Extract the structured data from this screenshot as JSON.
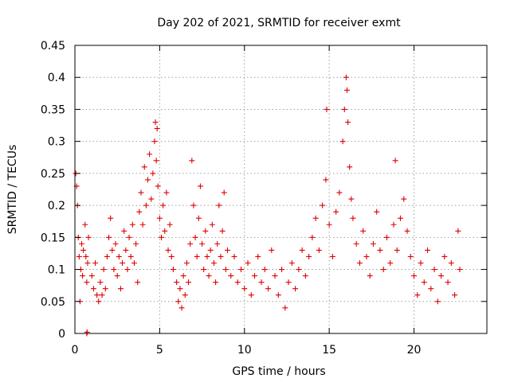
{
  "chart_data": {
    "type": "scatter",
    "title": "Day 202 of 2021, SRMTID for receiver exmt",
    "xlabel": "GPS time / hours",
    "ylabel": "SRMTID / TECUs",
    "xlim": [
      0,
      24.3
    ],
    "ylim": [
      0,
      0.45
    ],
    "xticks": [
      0,
      5,
      10,
      15,
      20
    ],
    "xtick_labels": [
      "0",
      "5",
      "10",
      "15",
      "20"
    ],
    "yticks": [
      0,
      0.05,
      0.1,
      0.15,
      0.2,
      0.25,
      0.3,
      0.35,
      0.4,
      0.45
    ],
    "ytick_labels": [
      "0",
      "0.05",
      "0.1",
      "0.15",
      "0.2",
      "0.25",
      "0.3",
      "0.35",
      "0.4",
      "0.45"
    ],
    "grid": true,
    "marker": "plus",
    "color": "#e00000",
    "series": [
      {
        "name": "SRMTID",
        "points": [
          [
            0.05,
            0.25
          ],
          [
            0.1,
            0.23
          ],
          [
            0.15,
            0.2
          ],
          [
            0.2,
            0.15
          ],
          [
            0.25,
            0.12
          ],
          [
            0.3,
            0.05
          ],
          [
            0.35,
            0.1
          ],
          [
            0.4,
            0.14
          ],
          [
            0.45,
            0.09
          ],
          [
            0.5,
            0.13
          ],
          [
            0.6,
            0.17
          ],
          [
            0.65,
            0.12
          ],
          [
            0.7,
            0.08
          ],
          [
            0.75,
            0.11
          ],
          [
            0.8,
            0.15
          ],
          [
            0.7,
            0.0
          ],
          [
            0.72,
            0.002
          ],
          [
            1.0,
            0.09
          ],
          [
            1.1,
            0.07
          ],
          [
            1.2,
            0.11
          ],
          [
            1.3,
            0.06
          ],
          [
            1.4,
            0.05
          ],
          [
            1.5,
            0.08
          ],
          [
            1.6,
            0.06
          ],
          [
            1.7,
            0.1
          ],
          [
            1.8,
            0.07
          ],
          [
            1.9,
            0.12
          ],
          [
            2.0,
            0.15
          ],
          [
            2.1,
            0.18
          ],
          [
            2.2,
            0.13
          ],
          [
            2.3,
            0.1
          ],
          [
            2.4,
            0.14
          ],
          [
            2.5,
            0.09
          ],
          [
            2.6,
            0.12
          ],
          [
            2.7,
            0.07
          ],
          [
            2.8,
            0.11
          ],
          [
            2.9,
            0.16
          ],
          [
            3.0,
            0.13
          ],
          [
            3.1,
            0.1
          ],
          [
            3.2,
            0.15
          ],
          [
            3.3,
            0.12
          ],
          [
            3.4,
            0.17
          ],
          [
            3.5,
            0.11
          ],
          [
            3.6,
            0.14
          ],
          [
            3.7,
            0.08
          ],
          [
            3.8,
            0.19
          ],
          [
            3.9,
            0.22
          ],
          [
            4.0,
            0.17
          ],
          [
            4.1,
            0.26
          ],
          [
            4.2,
            0.2
          ],
          [
            4.3,
            0.24
          ],
          [
            4.4,
            0.28
          ],
          [
            4.5,
            0.21
          ],
          [
            4.6,
            0.25
          ],
          [
            4.7,
            0.3
          ],
          [
            4.75,
            0.33
          ],
          [
            4.8,
            0.27
          ],
          [
            4.85,
            0.32
          ],
          [
            4.9,
            0.23
          ],
          [
            5.0,
            0.18
          ],
          [
            5.1,
            0.15
          ],
          [
            5.2,
            0.2
          ],
          [
            5.3,
            0.16
          ],
          [
            5.4,
            0.22
          ],
          [
            5.5,
            0.13
          ],
          [
            5.6,
            0.17
          ],
          [
            5.7,
            0.12
          ],
          [
            5.8,
            0.1
          ],
          [
            6.0,
            0.08
          ],
          [
            6.1,
            0.05
          ],
          [
            6.2,
            0.07
          ],
          [
            6.3,
            0.04
          ],
          [
            6.4,
            0.09
          ],
          [
            6.5,
            0.06
          ],
          [
            6.6,
            0.11
          ],
          [
            6.7,
            0.08
          ],
          [
            6.8,
            0.14
          ],
          [
            6.9,
            0.27
          ],
          [
            7.0,
            0.2
          ],
          [
            7.1,
            0.15
          ],
          [
            7.2,
            0.12
          ],
          [
            7.3,
            0.18
          ],
          [
            7.4,
            0.23
          ],
          [
            7.5,
            0.14
          ],
          [
            7.6,
            0.1
          ],
          [
            7.7,
            0.16
          ],
          [
            7.8,
            0.12
          ],
          [
            7.9,
            0.09
          ],
          [
            8.0,
            0.13
          ],
          [
            8.1,
            0.17
          ],
          [
            8.2,
            0.11
          ],
          [
            8.3,
            0.08
          ],
          [
            8.4,
            0.14
          ],
          [
            8.5,
            0.2
          ],
          [
            8.6,
            0.12
          ],
          [
            8.7,
            0.16
          ],
          [
            8.8,
            0.22
          ],
          [
            8.9,
            0.1
          ],
          [
            9.0,
            0.13
          ],
          [
            9.2,
            0.09
          ],
          [
            9.4,
            0.12
          ],
          [
            9.6,
            0.08
          ],
          [
            9.8,
            0.1
          ],
          [
            10.0,
            0.07
          ],
          [
            10.2,
            0.11
          ],
          [
            10.4,
            0.06
          ],
          [
            10.6,
            0.09
          ],
          [
            10.8,
            0.12
          ],
          [
            11.0,
            0.08
          ],
          [
            11.2,
            0.1
          ],
          [
            11.4,
            0.07
          ],
          [
            11.6,
            0.13
          ],
          [
            11.8,
            0.09
          ],
          [
            12.0,
            0.06
          ],
          [
            12.2,
            0.1
          ],
          [
            12.4,
            0.04
          ],
          [
            12.6,
            0.08
          ],
          [
            12.8,
            0.11
          ],
          [
            13.0,
            0.07
          ],
          [
            13.2,
            0.1
          ],
          [
            13.4,
            0.13
          ],
          [
            13.6,
            0.09
          ],
          [
            13.8,
            0.12
          ],
          [
            14.0,
            0.15
          ],
          [
            14.2,
            0.18
          ],
          [
            14.4,
            0.13
          ],
          [
            14.6,
            0.2
          ],
          [
            14.8,
            0.24
          ],
          [
            14.85,
            0.35
          ],
          [
            15.0,
            0.17
          ],
          [
            15.2,
            0.12
          ],
          [
            15.4,
            0.19
          ],
          [
            15.6,
            0.22
          ],
          [
            15.8,
            0.3
          ],
          [
            15.9,
            0.35
          ],
          [
            16.0,
            0.4
          ],
          [
            16.05,
            0.38
          ],
          [
            16.1,
            0.33
          ],
          [
            16.2,
            0.26
          ],
          [
            16.3,
            0.21
          ],
          [
            16.4,
            0.18
          ],
          [
            16.6,
            0.14
          ],
          [
            16.8,
            0.11
          ],
          [
            17.0,
            0.16
          ],
          [
            17.2,
            0.12
          ],
          [
            17.4,
            0.09
          ],
          [
            17.6,
            0.14
          ],
          [
            17.8,
            0.19
          ],
          [
            18.0,
            0.13
          ],
          [
            18.2,
            0.1
          ],
          [
            18.4,
            0.15
          ],
          [
            18.6,
            0.11
          ],
          [
            18.8,
            0.17
          ],
          [
            18.9,
            0.27
          ],
          [
            19.0,
            0.13
          ],
          [
            19.2,
            0.18
          ],
          [
            19.4,
            0.21
          ],
          [
            19.6,
            0.16
          ],
          [
            19.8,
            0.12
          ],
          [
            20.0,
            0.09
          ],
          [
            20.2,
            0.06
          ],
          [
            20.4,
            0.11
          ],
          [
            20.6,
            0.08
          ],
          [
            20.8,
            0.13
          ],
          [
            21.0,
            0.07
          ],
          [
            21.2,
            0.1
          ],
          [
            21.4,
            0.05
          ],
          [
            21.6,
            0.09
          ],
          [
            21.8,
            0.12
          ],
          [
            22.0,
            0.08
          ],
          [
            22.2,
            0.11
          ],
          [
            22.4,
            0.06
          ],
          [
            22.6,
            0.16
          ],
          [
            22.7,
            0.1
          ]
        ]
      }
    ]
  }
}
